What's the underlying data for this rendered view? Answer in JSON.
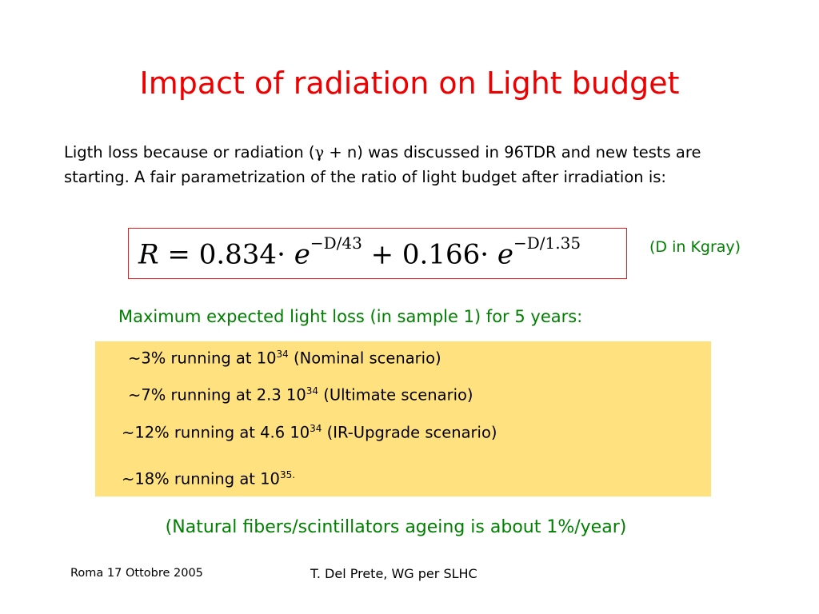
{
  "slide": {
    "title": "Impact of radiation on Light budget",
    "intro": {
      "before_gamma": "Ligth loss because or radiation (",
      "gamma": "γ",
      "after_gamma": " + n) was discussed in 96TDR and new tests are starting. A fair parametrization of the ratio of light budget after irradiation is:"
    },
    "formula": {
      "lhs": "R",
      "eq": " = 0.834",
      "dot1": "·",
      "e1": "e",
      "exp1": "−D/43",
      "plus": " + 0.166",
      "dot2": "·",
      "e2": "e",
      "exp2": "−D/1.35"
    },
    "unit_note": "(D in Kgray)",
    "max_heading": "Maximum expected light loss (in sample 1) for 5 years:",
    "items": [
      {
        "pre": "~3% running at 10",
        "sup": "34",
        "post": " (Nominal scenario)"
      },
      {
        "pre": "~7% running at 2.3 10",
        "sup": "34",
        "post": " (Ultimate scenario)"
      },
      {
        "pre": "~12% running at 4.6 10",
        "sup": "34",
        "post": " (IR-Upgrade scenario)"
      },
      {
        "pre": "~18% running at 10",
        "sup": "35.",
        "post": ""
      }
    ],
    "footnote": "(Natural fibers/scintillators ageing is about 1%/year)",
    "footer_left": "Roma 17 Ottobre 2005",
    "footer_center": "T. Del Prete, WG per SLHC"
  },
  "colors": {
    "title": "#ee0000",
    "green_text": "#008000",
    "highlight_box": "#ffe27f",
    "formula_border": "#ee1c1c"
  }
}
